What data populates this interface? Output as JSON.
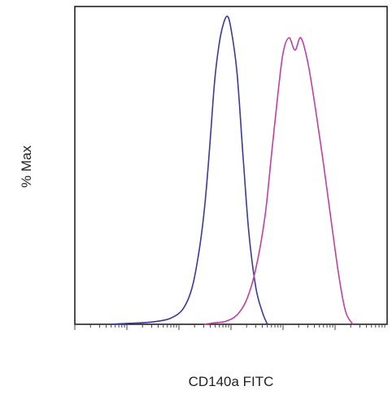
{
  "chart_data": {
    "type": "line",
    "title": "",
    "xlabel": "CD140a FITC",
    "ylabel": "% Max",
    "x_scale": "log",
    "xlim": [
      0.1,
      100000
    ],
    "ylim": [
      0,
      100
    ],
    "grid": false,
    "legend": "none",
    "series": [
      {
        "color": "#3a3a9a",
        "x": [
          0.5,
          1.0,
          2.0,
          4.0,
          7.0,
          12,
          18,
          25,
          32,
          40,
          48,
          58,
          70,
          85,
          100,
          130,
          170,
          220,
          300,
          400,
          500
        ],
        "values": [
          0,
          0.3,
          0.5,
          1,
          2,
          5,
          12,
          25,
          40,
          60,
          78,
          90,
          97,
          100,
          96,
          82,
          55,
          30,
          12,
          4,
          0
        ]
      },
      {
        "color": "#c040a0",
        "x": [
          30,
          50,
          80,
          130,
          200,
          300,
          450,
          600,
          800,
          1000,
          1300,
          1700,
          2200,
          3000,
          4200,
          6000,
          8500,
          12000,
          16000,
          22000
        ],
        "values": [
          0,
          0.5,
          1,
          3,
          8,
          18,
          35,
          55,
          75,
          88,
          93,
          89,
          93,
          85,
          70,
          52,
          33,
          15,
          4,
          0
        ]
      }
    ]
  }
}
